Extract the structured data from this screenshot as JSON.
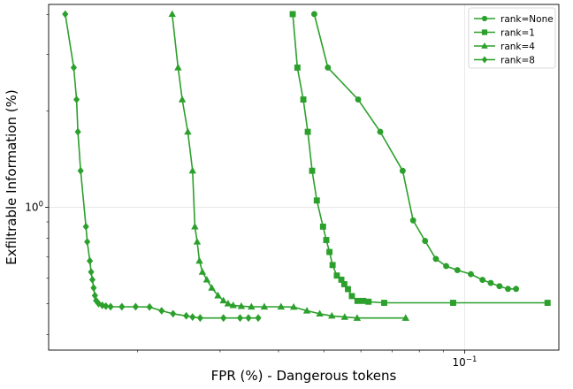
{
  "chart_data": {
    "type": "line",
    "title": "",
    "xlabel": "FPR (%) - Dangerous tokens",
    "ylabel": "Exfiltrable Information (%)",
    "xscale": "log",
    "yscale": "log",
    "xlim": [
      0.0129,
      0.159
    ],
    "ylim": [
      0.358,
      4.3
    ],
    "x_ticks": [
      {
        "value": 0.1,
        "label": "10^-1"
      }
    ],
    "y_ticks": [
      {
        "value": 1.0,
        "label": "10^0"
      }
    ],
    "grid": true,
    "legend_position": "top-right",
    "series_color": "#2ca02c",
    "series": [
      {
        "name": "rank=None",
        "marker": "circle",
        "x": [
          0.0477,
          0.051,
          0.0592,
          0.066,
          0.0737,
          0.0776,
          0.0823,
          0.0868,
          0.0913,
          0.0965,
          0.1031,
          0.1092,
          0.1137,
          0.1187,
          0.1238,
          0.1288
        ],
        "y": [
          4.01,
          2.73,
          2.17,
          1.72,
          1.3,
          0.91,
          0.785,
          0.69,
          0.655,
          0.636,
          0.618,
          0.593,
          0.58,
          0.567,
          0.556,
          0.556
        ]
      },
      {
        "name": "rank=1",
        "marker": "square",
        "x": [
          0.0429,
          0.0439,
          0.0452,
          0.0462,
          0.0472,
          0.0483,
          0.0498,
          0.0506,
          0.0514,
          0.0522,
          0.0533,
          0.0545,
          0.0553,
          0.0563,
          0.0574,
          0.059,
          0.0607,
          0.0623,
          0.0673,
          0.0945,
          0.1504
        ],
        "y": [
          4.01,
          2.73,
          2.17,
          1.72,
          1.3,
          1.05,
          0.87,
          0.79,
          0.725,
          0.66,
          0.612,
          0.594,
          0.575,
          0.555,
          0.528,
          0.51,
          0.51,
          0.507,
          0.503,
          0.503,
          0.503
        ]
      },
      {
        "name": "rank=4",
        "marker": "triangle",
        "x": [
          0.0237,
          0.0244,
          0.0249,
          0.0256,
          0.0262,
          0.0265,
          0.0268,
          0.0271,
          0.0275,
          0.0281,
          0.0288,
          0.0297,
          0.0305,
          0.0312,
          0.032,
          0.0333,
          0.035,
          0.0373,
          0.0405,
          0.0431,
          0.046,
          0.049,
          0.052,
          0.0554,
          0.0589,
          0.0748
        ],
        "y": [
          4.01,
          2.73,
          2.17,
          1.72,
          1.3,
          0.87,
          0.78,
          0.68,
          0.628,
          0.594,
          0.56,
          0.53,
          0.511,
          0.5,
          0.494,
          0.491,
          0.489,
          0.489,
          0.489,
          0.488,
          0.475,
          0.465,
          0.458,
          0.454,
          0.451,
          0.451
        ]
      },
      {
        "name": "rank=8",
        "marker": "diamond",
        "x": [
          0.014,
          0.0146,
          0.0148,
          0.0149,
          0.0151,
          0.0155,
          0.0156,
          0.0158,
          0.0159,
          0.016,
          0.0161,
          0.0162,
          0.0163,
          0.0165,
          0.0168,
          0.0171,
          0.0175,
          0.0185,
          0.0198,
          0.0212,
          0.0225,
          0.0238,
          0.0254,
          0.0262,
          0.0272,
          0.0305,
          0.0331,
          0.0345,
          0.0362
        ],
        "y": [
          4.01,
          2.73,
          2.17,
          1.72,
          1.3,
          0.87,
          0.78,
          0.68,
          0.628,
          0.594,
          0.56,
          0.53,
          0.511,
          0.5,
          0.494,
          0.491,
          0.489,
          0.489,
          0.489,
          0.488,
          0.475,
          0.465,
          0.458,
          0.454,
          0.451,
          0.451,
          0.451,
          0.451,
          0.451
        ]
      }
    ]
  }
}
